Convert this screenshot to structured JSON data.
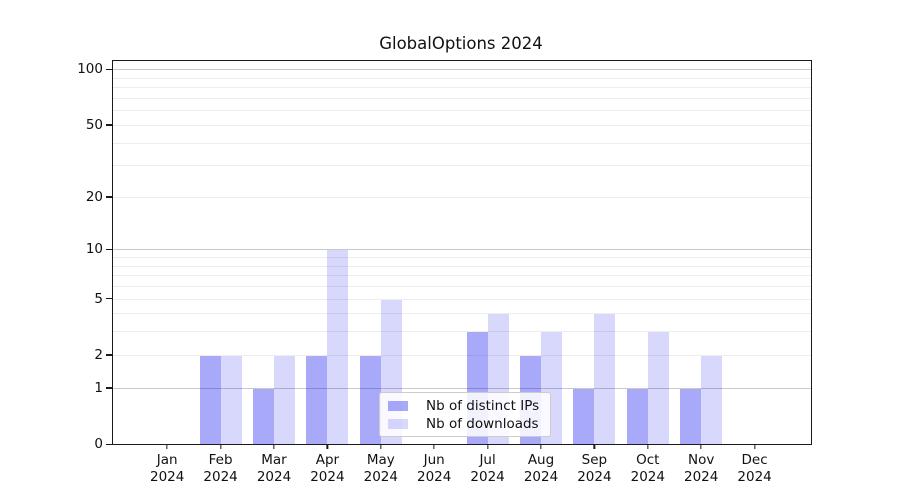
{
  "title": "GlobalOptions 2024",
  "chart_data": {
    "type": "bar",
    "title": "GlobalOptions 2024",
    "categories": [
      "Jan 2024",
      "Feb 2024",
      "Mar 2024",
      "Apr 2024",
      "May 2024",
      "Jun 2024",
      "Jul 2024",
      "Aug 2024",
      "Sep 2024",
      "Oct 2024",
      "Nov 2024",
      "Dec 2024"
    ],
    "x_tick_months": [
      "Jan",
      "Feb",
      "Mar",
      "Apr",
      "May",
      "Jun",
      "Jul",
      "Aug",
      "Sep",
      "Oct",
      "Nov",
      "Dec"
    ],
    "x_tick_year": "2024",
    "series": [
      {
        "name": "Nb of distinct IPs",
        "color": "rgba(10,10,240,0.35)",
        "values": [
          0,
          2,
          1,
          2,
          2,
          0,
          3,
          2,
          1,
          1,
          1,
          0
        ]
      },
      {
        "name": "Nb of downloads",
        "color": "rgba(10,10,240,0.16)",
        "values": [
          0,
          2,
          2,
          10,
          5,
          0,
          4,
          3,
          4,
          3,
          2,
          0
        ]
      }
    ],
    "y_axis": {
      "scale": "log1p",
      "tick_labels": [
        "0",
        "1",
        "2",
        "5",
        "10",
        "20",
        "50",
        "100"
      ],
      "tick_values": [
        0,
        1,
        2,
        5,
        10,
        20,
        50,
        100
      ],
      "major_grid_values": [
        1,
        10,
        100
      ],
      "minor_grid_values": [
        2,
        3,
        4,
        5,
        6,
        7,
        8,
        9,
        20,
        30,
        40,
        50,
        60,
        70,
        80,
        90
      ],
      "y_max": 111,
      "grid": true
    },
    "legend": {
      "position": "lower-center",
      "items": [
        "Nb of distinct IPs",
        "Nb of downloads"
      ]
    }
  },
  "colors": {
    "bar_distinct_ips": "rgba(10,10,240,0.35)",
    "bar_downloads": "rgba(10,10,240,0.16)",
    "grid_major": "#c9c9c9",
    "grid_minor": "#ededed",
    "spine": "#1a1a1a",
    "text": "#111111",
    "legend_border": "#cccccc",
    "legend_background": "rgba(255,255,255,0.85)"
  }
}
